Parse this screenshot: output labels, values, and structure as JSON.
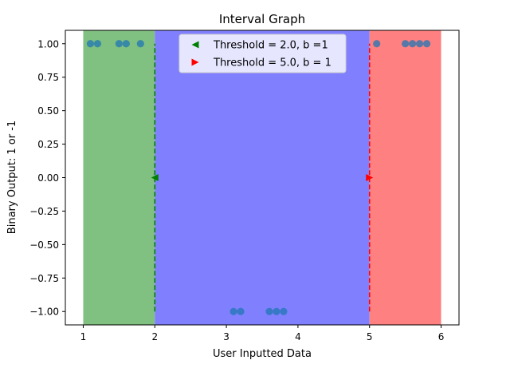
{
  "chart_data": {
    "type": "scatter",
    "title": "Interval Graph",
    "xlabel": "User Inputted Data",
    "ylabel": "Binary Output: 1 or -1",
    "xlim": [
      0.75,
      6.25
    ],
    "ylim": [
      -1.1,
      1.1
    ],
    "x_ticks": [
      1,
      2,
      3,
      4,
      5,
      6
    ],
    "x_tick_labels": [
      "1",
      "2",
      "3",
      "4",
      "5",
      "6"
    ],
    "y_ticks": [
      1.0,
      0.75,
      0.5,
      0.25,
      0.0,
      -0.25,
      -0.5,
      -0.75,
      -1.0
    ],
    "y_tick_labels": [
      "1.00",
      "0.75",
      "0.50",
      "0.25",
      "0.00",
      "−0.25",
      "−0.50",
      "−0.75",
      "−1.00"
    ],
    "grid": false,
    "legend_position": "upper center",
    "regions": [
      {
        "x_start": 1,
        "x_end": 2,
        "color": "#80c080"
      },
      {
        "x_start": 2,
        "x_end": 5,
        "color": "#8080ff"
      },
      {
        "x_start": 5,
        "x_end": 6,
        "color": "#ff8080"
      }
    ],
    "thresholds": [
      {
        "value": 2.0,
        "b": 1,
        "label": "Threshold = 2.0, b =1",
        "color": "#008000",
        "marker": "triangle-left",
        "marker_y": 0.0,
        "line_y": [
          -1.0,
          1.0
        ]
      },
      {
        "value": 5.0,
        "b": 1,
        "label": "Threshold = 5.0, b = 1",
        "color": "#ff0000",
        "marker": "triangle-right",
        "marker_y": 0.0,
        "line_y": [
          -1.0,
          1.0
        ]
      }
    ],
    "points": {
      "x": [
        1.1,
        1.2,
        1.5,
        1.6,
        1.8,
        3.1,
        3.2,
        3.6,
        3.7,
        3.8,
        5.1,
        5.5,
        5.6,
        5.7,
        5.8
      ],
      "y": [
        1,
        1,
        1,
        1,
        1,
        -1,
        -1,
        -1,
        -1,
        -1,
        1,
        1,
        1,
        1,
        1
      ],
      "color": "#1f77b4"
    }
  }
}
